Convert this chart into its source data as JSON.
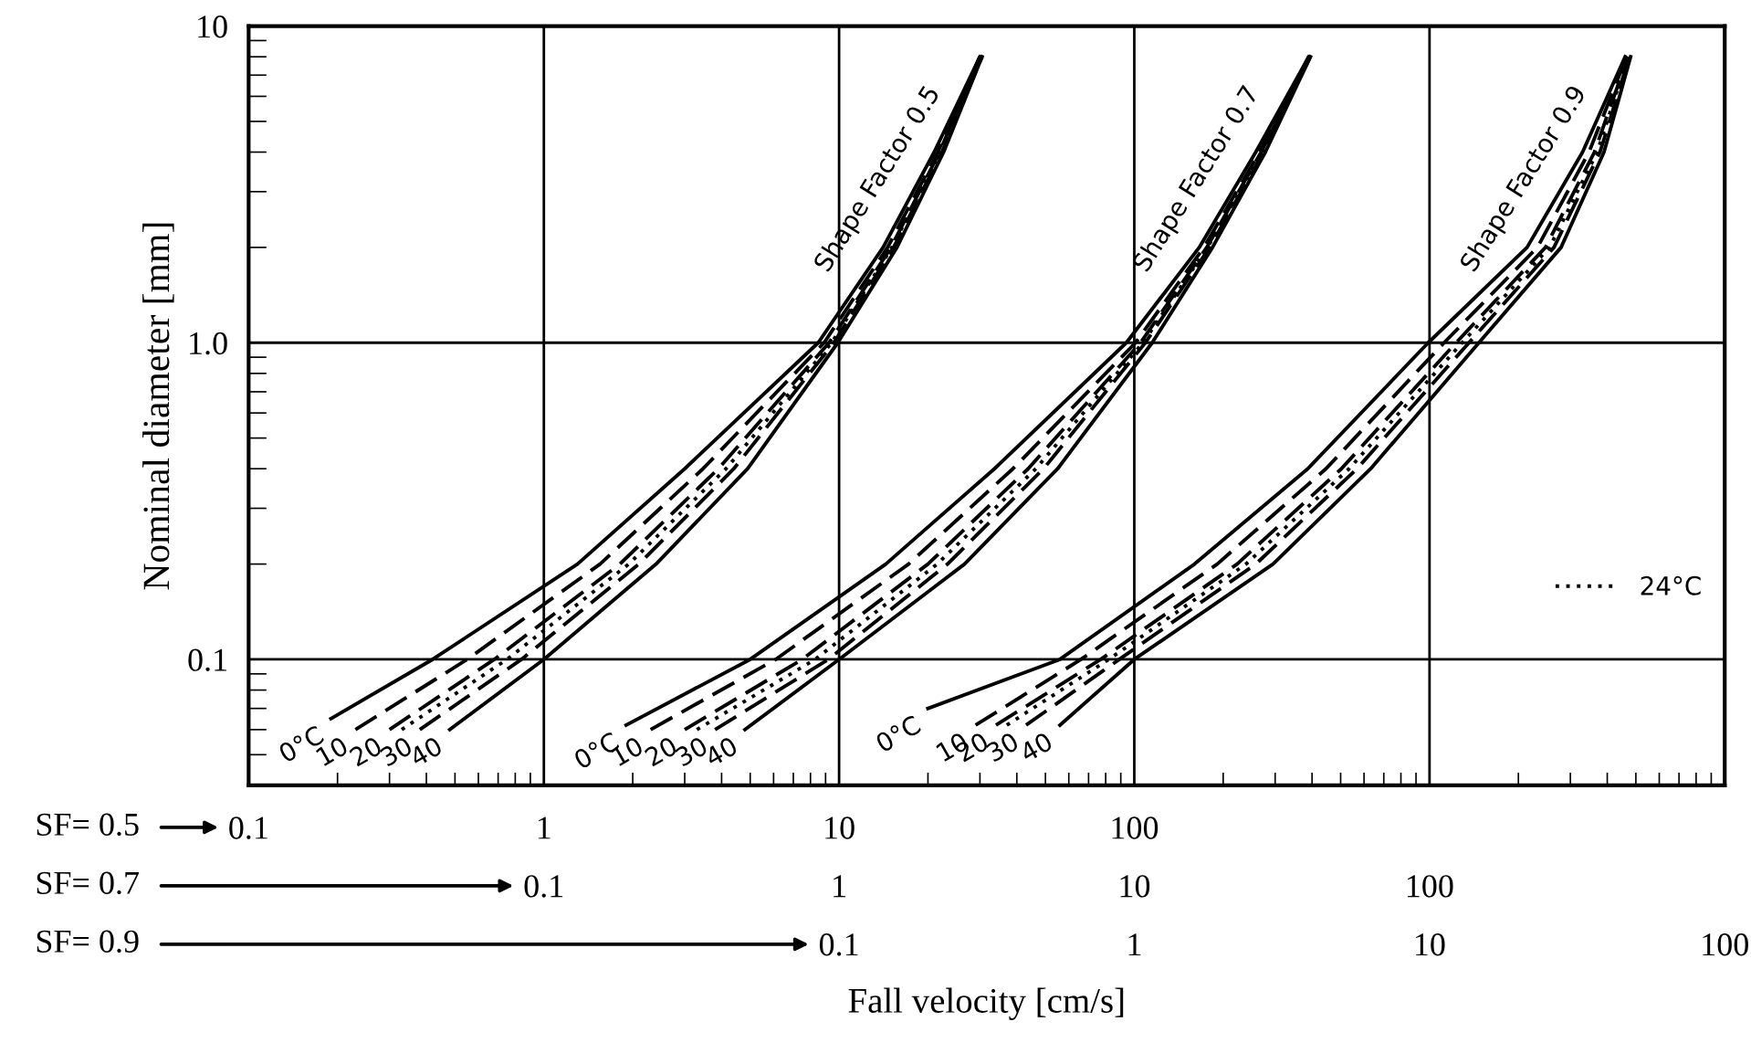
{
  "chart_data": [
    {
      "type": "line",
      "log": "xy",
      "ylabel": "Nominal diameter [mm]",
      "xlim": [
        0.1,
        10000
      ],
      "xticks": [
        0.1,
        1,
        10,
        100,
        {
          "value": 1000,
          "label": null
        }
      ],
      "ylim": [
        0.04,
        10
      ],
      "yticks": [
        0.1,
        {
          "value": 1,
          "label": "1.0"
        },
        10
      ],
      "grid": true,
      "legend": "right",
      "annotations": [
        "SF= 0.5",
        "Shape Factor 0.5"
      ],
      "series": [
        {
          "name": "0°C",
          "color": "#000000",
          "line_style": "solid",
          "x": [
            0.19,
            0.42,
            1.3,
            3.0,
            8.5,
            14.1,
            21,
            30
          ],
          "values": [
            0.065,
            0.1,
            0.2,
            0.4,
            1,
            2,
            4,
            8
          ]
        },
        {
          "name": "10",
          "color": "#000000",
          "line_style": "dashed",
          "x": [
            0.23,
            0.55,
            1.55,
            3.46,
            8.9,
            14.6,
            21.6,
            30
          ],
          "values": [
            0.06,
            0.1,
            0.2,
            0.4,
            1,
            2,
            4,
            8
          ]
        },
        {
          "name": "20",
          "color": "#000000",
          "line_style": "dashed",
          "x": [
            0.3,
            0.68,
            1.81,
            3.9,
            9.25,
            15.0,
            21.9,
            30
          ],
          "values": [
            0.06,
            0.1,
            0.2,
            0.4,
            1,
            2,
            4,
            8
          ]
        },
        {
          "name": "24°C",
          "color": "#000000",
          "line_style": "dotted",
          "x": [
            0.33,
            0.75,
            1.94,
            4.14,
            9.44,
            15.1,
            22.1,
            30
          ],
          "values": [
            0.06,
            0.1,
            0.2,
            0.4,
            1,
            2,
            4,
            8
          ]
        },
        {
          "name": "30",
          "color": "#000000",
          "line_style": "dashed",
          "x": [
            0.38,
            0.84,
            2.1,
            4.4,
            9.6,
            15.3,
            22.3,
            30.5
          ],
          "values": [
            0.06,
            0.1,
            0.2,
            0.4,
            1,
            2,
            4,
            8
          ]
        },
        {
          "name": "40",
          "color": "#000000",
          "line_style": "solid",
          "x": [
            0.48,
            1.0,
            2.4,
            4.9,
            9.9,
            15.7,
            22.6,
            30.5
          ],
          "values": [
            0.06,
            0.1,
            0.2,
            0.4,
            1,
            2,
            4,
            8
          ]
        }
      ]
    },
    {
      "type": "line",
      "log": "xy",
      "tick_labels": "x",
      "xlim": [
        0.01,
        1000
      ],
      "xticks": [
        0.1,
        1,
        10,
        100
      ],
      "ylim": [
        0.04,
        10
      ],
      "annotations": [
        "SF= 0.7",
        "Shape Factor 0.7"
      ],
      "series": [
        {
          "name": "0°C",
          "color": "#000000",
          "line_style": "solid",
          "x": [
            0.19,
            0.5,
            1.44,
            3.36,
            9.4,
            16.6,
            25.8,
            39
          ],
          "values": [
            0.062,
            0.1,
            0.2,
            0.4,
            1,
            2,
            4,
            8
          ]
        },
        {
          "name": "10",
          "color": "#000000",
          "line_style": "dashed",
          "x": [
            0.23,
            0.61,
            1.72,
            3.88,
            10.1,
            17.2,
            26.6,
            39
          ],
          "values": [
            0.06,
            0.1,
            0.2,
            0.4,
            1,
            2,
            4,
            8
          ]
        },
        {
          "name": "20",
          "color": "#000000",
          "line_style": "dashed",
          "x": [
            0.3,
            0.75,
            2.0,
            4.37,
            10.5,
            17.6,
            26.9,
            39
          ],
          "values": [
            0.06,
            0.1,
            0.2,
            0.4,
            1,
            2,
            4,
            8
          ]
        },
        {
          "color": "#000000",
          "line_style": "dotted",
          "x": [
            0.33,
            0.83,
            2.15,
            4.64,
            10.7,
            17.7,
            27.2,
            39
          ],
          "values": [
            0.06,
            0.1,
            0.2,
            0.4,
            1,
            2,
            4,
            8
          ]
        },
        {
          "name": "30",
          "color": "#000000",
          "line_style": "dashed",
          "x": [
            0.38,
            0.92,
            2.33,
            4.93,
            10.9,
            18.0,
            27.4,
            39.5
          ],
          "values": [
            0.06,
            0.1,
            0.2,
            0.4,
            1,
            2,
            4,
            8
          ]
        },
        {
          "name": "40",
          "color": "#000000",
          "line_style": "solid",
          "x": [
            0.48,
            1.0,
            2.66,
            5.5,
            11.5,
            18.4,
            27.8,
            39.5
          ],
          "values": [
            0.06,
            0.1,
            0.2,
            0.4,
            1,
            2,
            4,
            8
          ]
        }
      ]
    },
    {
      "type": "line",
      "log": "xy",
      "tick_labels": "x",
      "xlabel": "Fall velocity [cm/s]",
      "xlim": [
        0.001,
        100
      ],
      "xticks": [
        0.1,
        1,
        10,
        100
      ],
      "ylim": [
        0.04,
        10
      ],
      "annotations": [
        "SF= 0.9",
        "Shape Factor 0.9"
      ],
      "series": [
        {
          "name": "0°C",
          "color": "#000000",
          "line_style": "solid",
          "x": [
            0.2,
            0.56,
            1.6,
            3.87,
            9.9,
            21.4,
            33,
            46
          ],
          "values": [
            0.07,
            0.1,
            0.2,
            0.4,
            1,
            2,
            4,
            8
          ]
        },
        {
          "name": "10",
          "color": "#000000",
          "line_style": "dashed",
          "x": [
            0.29,
            0.66,
            1.91,
            4.46,
            11.2,
            23.2,
            34.7,
            46.5
          ],
          "values": [
            0.062,
            0.1,
            0.2,
            0.4,
            1,
            2,
            4,
            8
          ]
        },
        {
          "name": "20",
          "color": "#000000",
          "line_style": "dashed",
          "x": [
            0.34,
            0.77,
            2.23,
            5.03,
            12.3,
            24.7,
            36.2,
            47
          ],
          "values": [
            0.062,
            0.1,
            0.2,
            0.4,
            1,
            2,
            4,
            8
          ]
        },
        {
          "color": "#000000",
          "line_style": "dotted",
          "x": [
            0.37,
            0.82,
            2.39,
            5.34,
            12.9,
            25.5,
            37,
            47
          ],
          "values": [
            0.062,
            0.1,
            0.2,
            0.4,
            1,
            2,
            4,
            8
          ]
        },
        {
          "name": "30",
          "color": "#000000",
          "line_style": "dashed",
          "x": [
            0.43,
            0.89,
            2.58,
            5.68,
            13.6,
            26.4,
            37.8,
            47.5
          ],
          "values": [
            0.062,
            0.1,
            0.2,
            0.4,
            1,
            2,
            4,
            8
          ]
        },
        {
          "name": "40",
          "color": "#000000",
          "line_style": "solid",
          "x": [
            0.56,
            1.0,
            2.95,
            6.32,
            14.7,
            27.9,
            39,
            48
          ],
          "values": [
            0.062,
            0.1,
            0.2,
            0.4,
            1,
            2,
            4,
            8
          ]
        }
      ]
    }
  ]
}
